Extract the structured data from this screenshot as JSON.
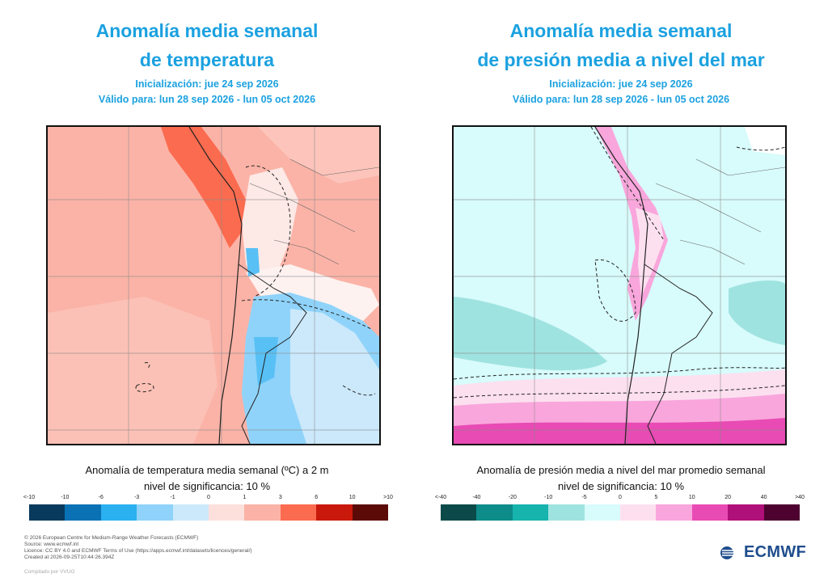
{
  "left": {
    "title_line1": "Anomalía media semanal",
    "title_line2": "de temperatura",
    "init": "Inicialización: jue 24 sep 2026",
    "valid": "Válido para: lun 28 sep 2026 - lun 05 oct 2026",
    "caption": "Anomalía de temperatura media semanal (ºC) a 2 m",
    "significance": "nivel de significancia: 10 %",
    "colorbar_labels": [
      "<-10",
      "-10",
      "-6",
      "-3",
      "-1",
      "0",
      "1",
      "3",
      "6",
      "10",
      ">10"
    ],
    "colorbar_colors": [
      "#073a5c",
      "#0a72b4",
      "#2bb0f0",
      "#8fd3fa",
      "#cbe9fb",
      "#fde0dc",
      "#fbb3a7",
      "#fb6b4f",
      "#c9190c",
      "#5c0a07"
    ]
  },
  "right": {
    "title_line1": "Anomalía media semanal",
    "title_line2": "de presión media a nivel del mar",
    "init": "Inicialización: jue 24 sep 2026",
    "valid": "Válido para: lun 28 sep 2026 - lun 05 oct 2026",
    "caption": "Anomalía de presión media a nivel del mar promedio semanal",
    "significance": "nivel de significancia: 10 %",
    "colorbar_labels": [
      "<-40",
      "-40",
      "-20",
      "-10",
      "-5",
      "0",
      "5",
      "10",
      "20",
      "40",
      ">40"
    ],
    "colorbar_colors": [
      "#0c4a4a",
      "#0d8c8a",
      "#17b3ad",
      "#9fe3e0",
      "#d8fbfb",
      "#fde0f0",
      "#f9a6dc",
      "#e84bb4",
      "#b0107a",
      "#4d0230"
    ]
  },
  "footer": {
    "line1": "© 2026 European Centre for Medium-Range Weather Forecasts (ECMWF)",
    "line2": "Source: www.ecmwf.int",
    "line3": "Licence: CC BY 4.0 and ECMWF Terms of Use (https://apps.ecmwf.int/datasets/licences/general/)",
    "line4": "Created at 2026-09-25T10:44:26.394Z",
    "compiled": "Compilado por VVUG"
  },
  "logo": {
    "text": "ECMWF",
    "icon": "ecmwf-logo-icon"
  }
}
